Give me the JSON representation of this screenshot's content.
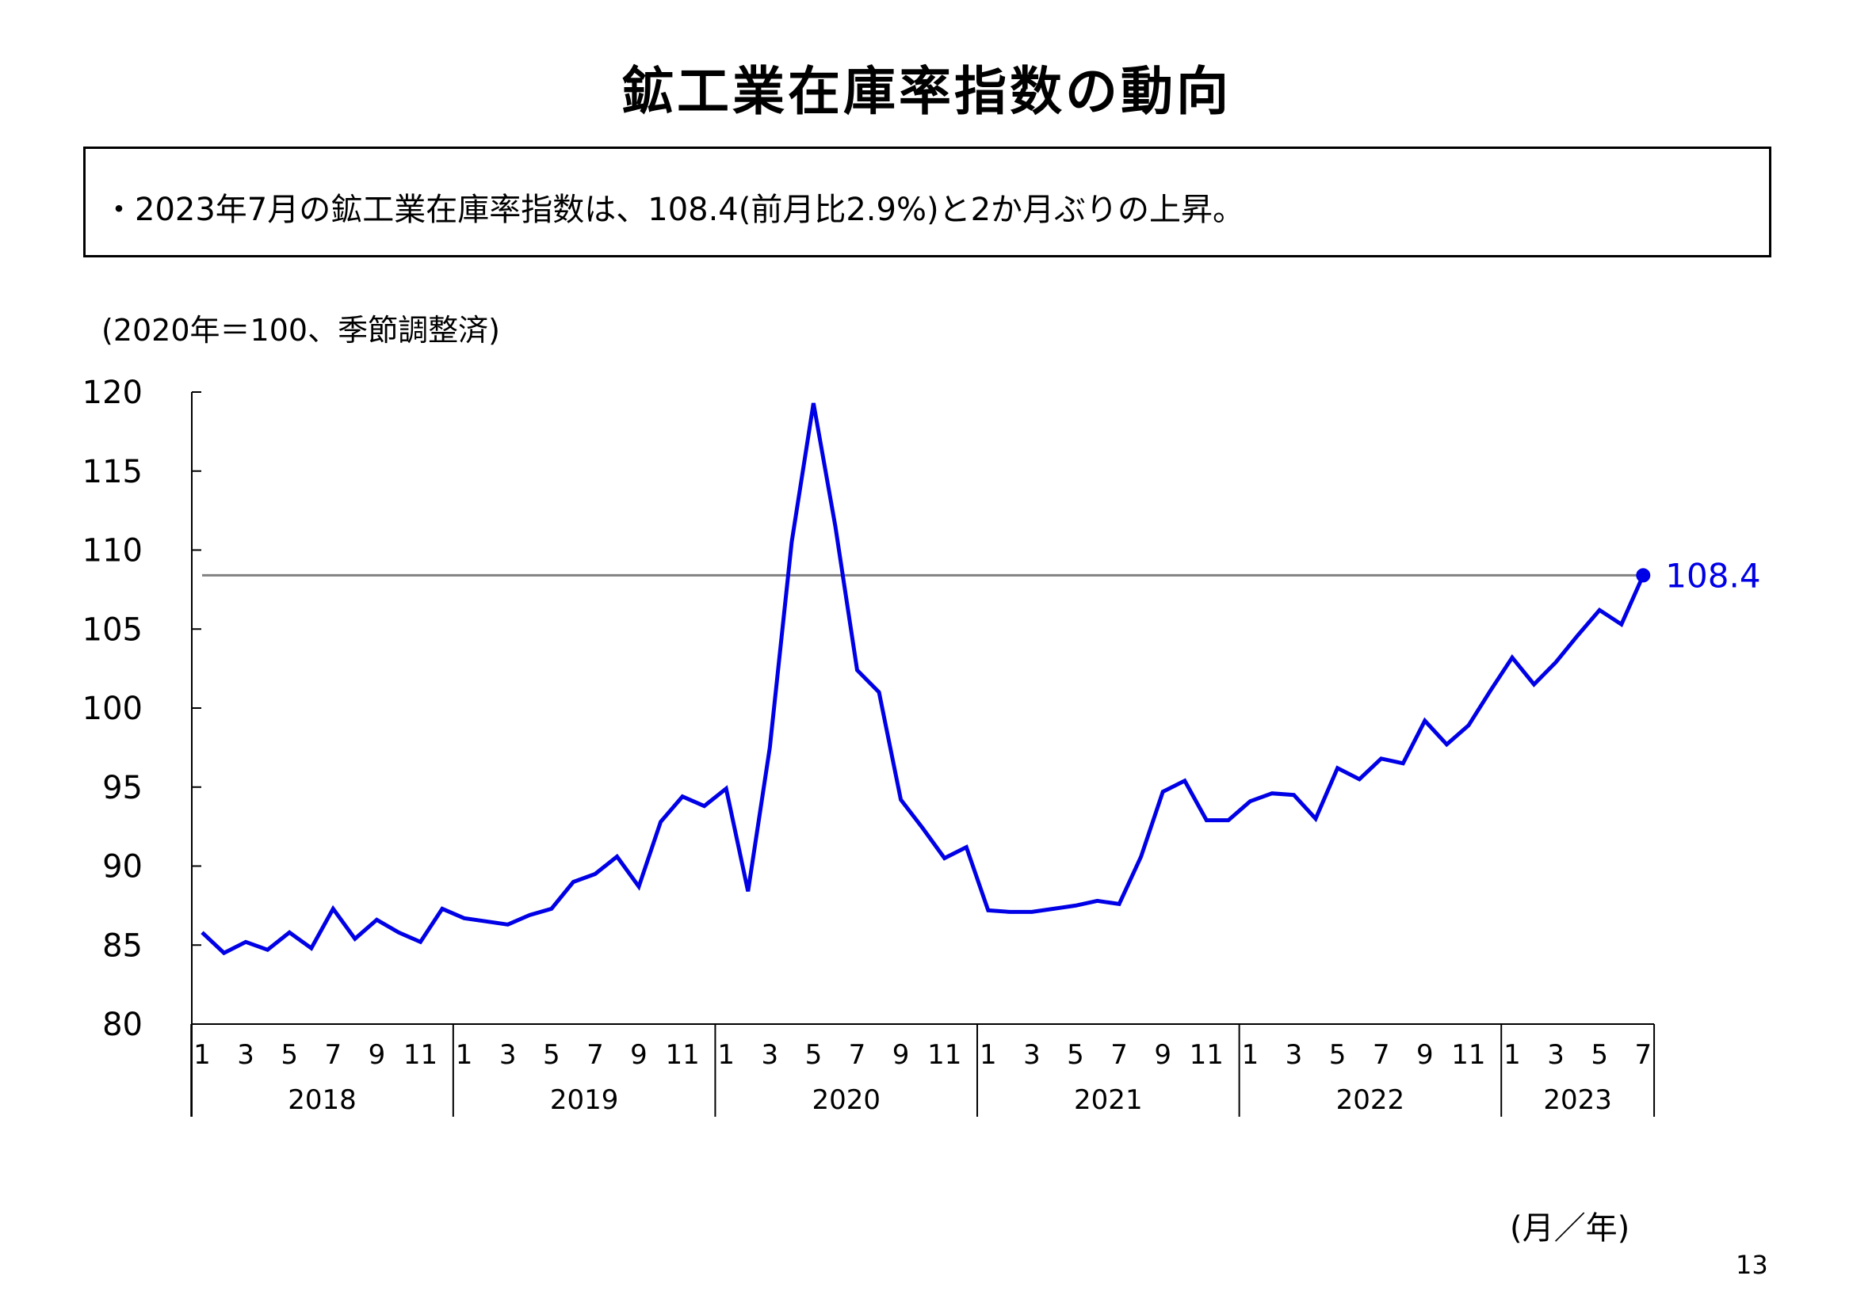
{
  "title": "鉱工業在庫率指数の動向",
  "summary": "・2023年7月の鉱工業在庫率指数は、108.4(前月比2.9%)と2か月ぶりの上昇。",
  "unit_note": "(2020年＝100、季節調整済)",
  "axis_unit": "(月／年)",
  "page_number": "13",
  "colors": {
    "series": "#0000e6",
    "reference_line": "#808080",
    "axis": "#000000"
  },
  "chart_data": {
    "type": "line",
    "title": "",
    "xlabel": "(月／年)",
    "ylabel": "(2020年＝100、季節調整済)",
    "ylim": [
      80,
      120
    ],
    "yticks": [
      80,
      85,
      90,
      95,
      100,
      105,
      110,
      115,
      120
    ],
    "grid": false,
    "years": [
      "2018",
      "2019",
      "2020",
      "2021",
      "2022",
      "2023"
    ],
    "months_per_year": [
      12,
      12,
      12,
      12,
      12,
      7
    ],
    "month_ticks": [
      "1",
      "3",
      "5",
      "7",
      "9",
      "11"
    ],
    "reference_line": 108.4,
    "last_value_label": "108.4",
    "series": [
      {
        "name": "",
        "values": [
          85.8,
          84.5,
          85.2,
          84.7,
          85.8,
          84.8,
          87.3,
          85.4,
          86.6,
          85.8,
          85.2,
          87.3,
          86.7,
          86.5,
          86.3,
          86.9,
          87.3,
          89.0,
          89.5,
          90.6,
          88.7,
          92.8,
          94.4,
          93.8,
          94.9,
          88.4,
          97.5,
          110.5,
          119.3,
          111.5,
          102.4,
          101.0,
          94.2,
          92.4,
          90.5,
          91.2,
          87.2,
          87.1,
          87.1,
          87.3,
          87.5,
          87.8,
          87.6,
          90.6,
          94.7,
          95.4,
          92.9,
          92.9,
          94.1,
          94.6,
          94.5,
          93.0,
          96.2,
          95.5,
          96.8,
          96.5,
          99.2,
          97.7,
          98.9,
          101.1,
          103.2,
          101.5,
          102.9,
          104.6,
          106.2,
          105.3,
          108.4
        ]
      }
    ]
  }
}
